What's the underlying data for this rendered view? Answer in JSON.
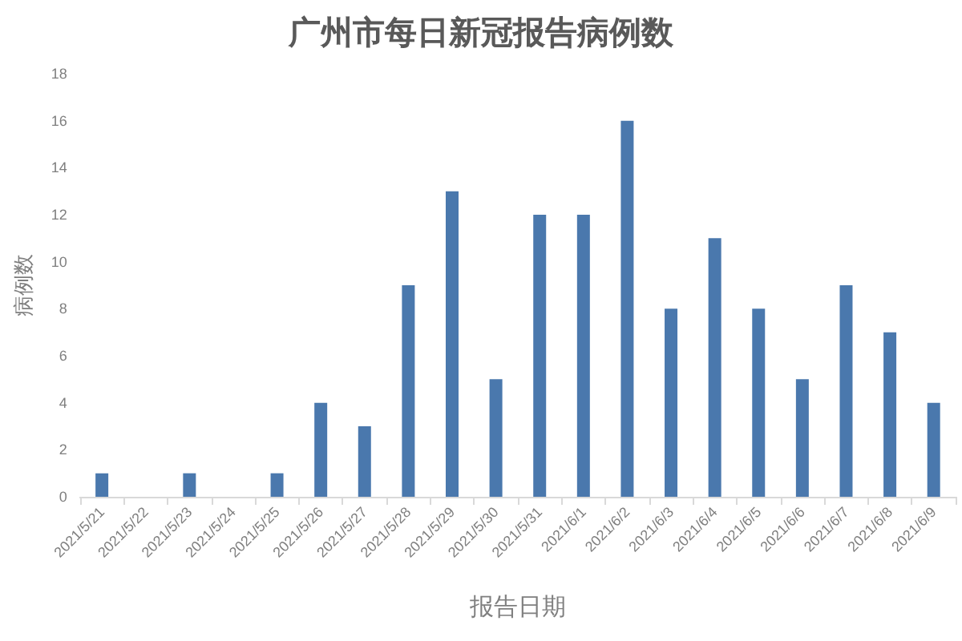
{
  "chart_data": {
    "type": "bar",
    "title": "广州市每日新冠报告病例数",
    "xlabel": "报告日期",
    "ylabel": "病例数",
    "categories": [
      "2021/5/21",
      "2021/5/22",
      "2021/5/23",
      "2021/5/24",
      "2021/5/25",
      "2021/5/26",
      "2021/5/27",
      "2021/5/28",
      "2021/5/29",
      "2021/5/30",
      "2021/5/31",
      "2021/6/1",
      "2021/6/2",
      "2021/6/3",
      "2021/6/4",
      "2021/6/5",
      "2021/6/6",
      "2021/6/7",
      "2021/6/8",
      "2021/6/9"
    ],
    "values": [
      1,
      0,
      1,
      0,
      1,
      4,
      3,
      9,
      13,
      5,
      12,
      12,
      16,
      8,
      11,
      8,
      5,
      9,
      7,
      4
    ],
    "color": "#4a78ad",
    "ylim": [
      0,
      18
    ],
    "yticks": [
      0,
      2,
      4,
      6,
      8,
      10,
      12,
      14,
      16,
      18
    ]
  }
}
